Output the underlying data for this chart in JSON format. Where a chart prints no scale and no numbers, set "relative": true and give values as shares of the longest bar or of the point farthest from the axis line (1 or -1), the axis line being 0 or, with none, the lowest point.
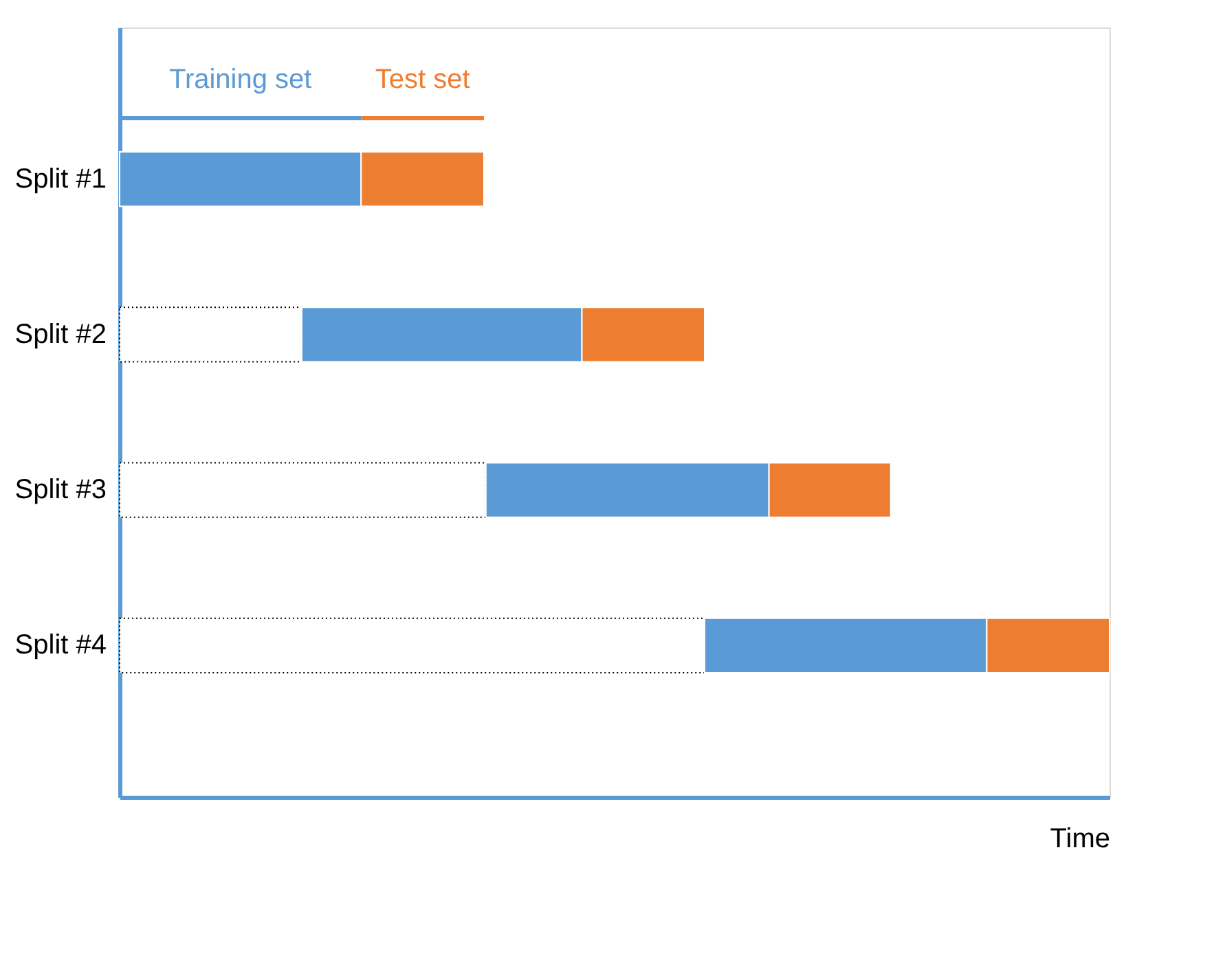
{
  "chart_data": {
    "type": "bar",
    "orientation": "horizontal",
    "stacked": true,
    "relative": true,
    "xlabel": "Time",
    "categories": [
      "Split #1",
      "Split #2",
      "Split #3",
      "Split #4"
    ],
    "series": [
      {
        "color": "#ffffff",
        "line_style": "dotted",
        "values": [
          null,
          0.184,
          0.37,
          0.591
        ]
      },
      {
        "name": "Training set",
        "color": "#5b9bd5",
        "values": [
          0.244,
          0.283,
          0.286,
          0.285
        ]
      },
      {
        "name": "Test set",
        "color": "#ed7d31",
        "values": [
          0.124,
          0.124,
          0.123,
          0.124
        ]
      }
    ]
  }
}
